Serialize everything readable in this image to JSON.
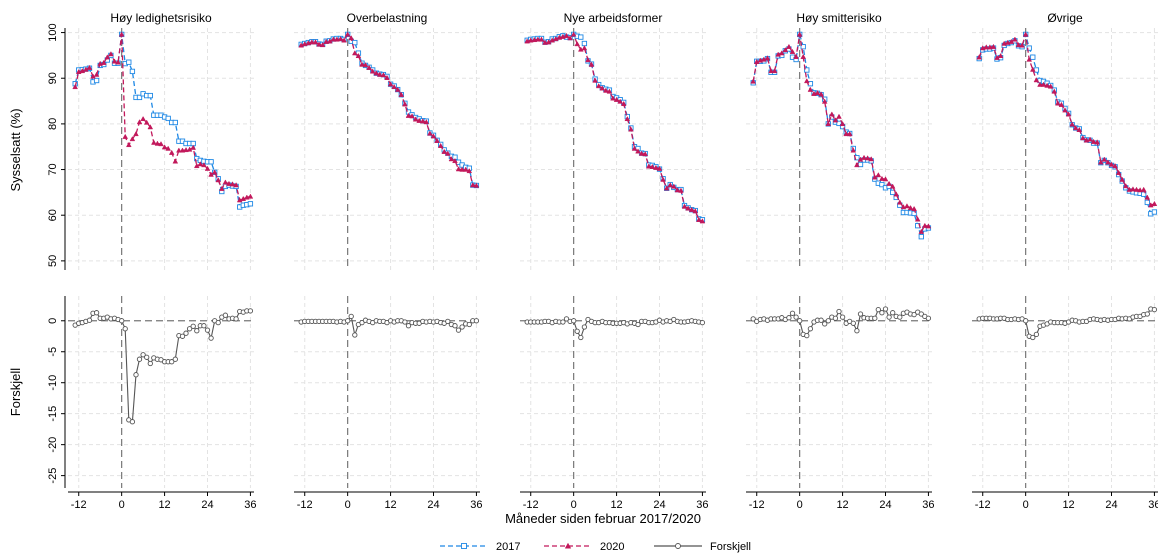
{
  "chart_data": {
    "type": "line",
    "xlabel": "Måneder siden februar 2017/2020",
    "x_ticks": [
      -12,
      0,
      12,
      24,
      36
    ],
    "x_range": [
      -15,
      37
    ],
    "top": {
      "ylabel": "Sysselsatt (%)",
      "ylim": [
        48,
        101
      ],
      "y_ticks": [
        50,
        60,
        70,
        80,
        90,
        100
      ]
    },
    "bottom": {
      "ylabel": "Forskjell",
      "ylim": [
        -27,
        4
      ],
      "y_ticks": [
        0,
        -5,
        -10,
        -15,
        -20,
        -25
      ],
      "y_tick_labels": [
        "0",
        "-5",
        "-10",
        "-15",
        "-20",
        "-25"
      ]
    },
    "legend": {
      "position": "bottom-center",
      "entries": [
        {
          "label": "2017",
          "color": "#1e88e5",
          "marker": "square",
          "dash": "dash"
        },
        {
          "label": "2020",
          "color": "#c2185b",
          "marker": "triangle",
          "dash": "dash"
        },
        {
          "label": "Forskjell",
          "color": "#555555",
          "marker": "circle",
          "dash": "solid"
        }
      ]
    },
    "months": [
      -13,
      -12,
      -11,
      -10,
      -9,
      -8,
      -7,
      -6,
      -5,
      -4,
      -3,
      -2,
      -1,
      0,
      1,
      2,
      3,
      4,
      5,
      6,
      7,
      8,
      9,
      10,
      11,
      12,
      13,
      14,
      15,
      16,
      17,
      18,
      19,
      20,
      21,
      22,
      23,
      24,
      25,
      26,
      27,
      28,
      29,
      30,
      31,
      32,
      33,
      34,
      35,
      36
    ],
    "panels": [
      {
        "title": "Høy ledighetsrisiko",
        "series_2017": [
          88.8,
          91.8,
          91.9,
          92.0,
          92.2,
          89.2,
          89.5,
          92.8,
          93.0,
          94.0,
          95.0,
          93.3,
          93.3,
          99.6,
          93.2,
          93.5,
          91.5,
          85.8,
          85.8,
          86.6,
          86.2,
          86.2,
          81.9,
          81.9,
          81.9,
          81.5,
          81.2,
          80.3,
          80.3,
          76.2,
          76.2,
          75.7,
          75.7,
          75.7,
          72.4,
          72.0,
          71.8,
          71.7,
          71.7,
          69.4,
          68.0,
          65.2,
          66.3,
          66.6,
          66.4,
          66.3,
          61.8,
          62.2,
          62.3,
          62.5
        ],
        "series_2020": [
          88.1,
          91.4,
          91.6,
          91.9,
          92.3,
          90.4,
          90.8,
          93.2,
          93.4,
          94.6,
          95.3,
          93.7,
          93.5,
          99.6,
          77.2,
          75.4,
          76.7,
          77.8,
          80.4,
          81.1,
          80.3,
          79.3,
          75.9,
          75.7,
          75.6,
          74.9,
          74.6,
          73.7,
          71.8,
          74.2,
          74.2,
          74.3,
          74.4,
          74.8,
          70.8,
          71.2,
          71.0,
          70.2,
          68.9,
          69.4,
          67.7,
          65.8,
          67.2,
          66.9,
          66.8,
          66.6,
          63.3,
          63.6,
          63.9,
          64.1
        ],
        "diff": [
          -0.7,
          -0.4,
          -0.3,
          -0.1,
          0.1,
          1.2,
          1.3,
          0.4,
          0.4,
          0.6,
          0.3,
          0.4,
          0.2,
          0.0,
          -1.3,
          -16.0,
          -16.3,
          -8.7,
          -6.2,
          -5.5,
          -5.9,
          -6.9,
          -6.0,
          -6.2,
          -6.3,
          -6.6,
          -6.6,
          -6.6,
          -6.2,
          -2.4,
          -2.5,
          -2.0,
          -1.3,
          -0.9,
          -1.6,
          -0.8,
          -0.8,
          -1.5,
          -2.8,
          0.0,
          -0.3,
          0.6,
          0.9,
          0.3,
          0.4,
          0.3,
          1.5,
          1.4,
          1.6,
          1.6
        ]
      },
      {
        "title": "Overbelastning",
        "series_2017": [
          97.4,
          97.6,
          97.8,
          98.0,
          98.0,
          97.5,
          97.4,
          98.1,
          98.2,
          98.6,
          98.7,
          98.7,
          98.5,
          99.6,
          98.1,
          97.8,
          95.5,
          93.3,
          92.8,
          92.4,
          91.8,
          91.1,
          90.9,
          90.8,
          90.4,
          88.7,
          88.3,
          87.5,
          86.4,
          84.5,
          82.6,
          82.0,
          81.4,
          81.1,
          80.7,
          80.6,
          78.0,
          77.5,
          76.4,
          75.5,
          74.3,
          73.6,
          72.9,
          72.7,
          71.6,
          71.0,
          70.5,
          70.3,
          66.6,
          66.5
        ],
        "series_2020": [
          97.2,
          97.5,
          97.7,
          97.9,
          97.9,
          97.4,
          97.3,
          98.0,
          98.1,
          98.5,
          98.5,
          98.6,
          98.3,
          99.6,
          98.8,
          95.5,
          94.9,
          93.0,
          92.9,
          92.3,
          91.5,
          91.1,
          90.8,
          90.7,
          90.1,
          88.7,
          88.1,
          87.5,
          86.4,
          84.3,
          81.8,
          81.7,
          81.0,
          80.7,
          80.6,
          80.4,
          77.9,
          77.3,
          76.3,
          75.2,
          73.9,
          73.5,
          72.3,
          71.9,
          70.1,
          70.0,
          70.0,
          69.7,
          66.6,
          66.5
        ],
        "diff": [
          -0.2,
          -0.1,
          -0.1,
          -0.1,
          -0.1,
          -0.1,
          -0.1,
          -0.1,
          -0.1,
          -0.1,
          -0.2,
          -0.1,
          -0.2,
          0.0,
          0.7,
          -2.3,
          -0.6,
          -0.3,
          0.1,
          -0.1,
          -0.3,
          0.0,
          -0.1,
          -0.1,
          -0.3,
          0.0,
          -0.2,
          0.0,
          0.0,
          -0.2,
          -0.8,
          -0.3,
          -0.4,
          -0.4,
          -0.1,
          -0.2,
          -0.1,
          -0.2,
          -0.1,
          -0.3,
          -0.4,
          -0.1,
          -0.6,
          -0.8,
          -1.5,
          -1.0,
          -0.5,
          -0.6,
          0.0,
          0.0
        ]
      },
      {
        "title": "Nye arbeidsformer",
        "series_2017": [
          98.3,
          98.5,
          98.6,
          98.7,
          98.7,
          97.9,
          98.0,
          98.6,
          98.7,
          99.1,
          99.3,
          99.0,
          98.9,
          99.6,
          99.2,
          99.0,
          97.6,
          93.8,
          93.1,
          89.8,
          88.6,
          87.9,
          87.6,
          87.4,
          86.0,
          85.7,
          85.3,
          84.7,
          81.6,
          79.1,
          75.0,
          74.6,
          73.6,
          73.5,
          71.0,
          70.9,
          70.6,
          70.1,
          68.0,
          65.9,
          66.7,
          66.1,
          65.6,
          65.6,
          62.1,
          61.6,
          61.2,
          61.0,
          59.2,
          59.0
        ],
        "series_2020": [
          98.1,
          98.3,
          98.4,
          98.5,
          98.5,
          97.8,
          97.9,
          98.3,
          98.6,
          98.9,
          99.1,
          99.3,
          98.8,
          99.6,
          97.5,
          96.3,
          96.6,
          94.0,
          93.0,
          89.5,
          88.3,
          87.8,
          87.3,
          87.1,
          85.6,
          85.3,
          84.9,
          84.4,
          81.1,
          78.8,
          74.6,
          74.0,
          73.5,
          73.4,
          70.7,
          70.6,
          70.4,
          70.2,
          67.8,
          65.9,
          66.6,
          66.3,
          65.5,
          65.4,
          61.9,
          61.5,
          61.2,
          60.9,
          59.0,
          58.7
        ],
        "diff": [
          -0.2,
          -0.2,
          -0.2,
          -0.2,
          -0.2,
          -0.1,
          -0.1,
          -0.3,
          -0.1,
          -0.2,
          -0.2,
          0.3,
          -0.1,
          0.0,
          -1.7,
          -2.7,
          -1.0,
          0.2,
          -0.1,
          -0.3,
          -0.3,
          -0.1,
          -0.3,
          -0.3,
          -0.4,
          -0.4,
          -0.4,
          -0.3,
          -0.5,
          -0.3,
          -0.4,
          -0.6,
          -0.1,
          -0.1,
          -0.3,
          -0.3,
          -0.2,
          0.1,
          -0.2,
          0.0,
          -0.1,
          0.2,
          -0.1,
          -0.2,
          -0.2,
          -0.1,
          0.0,
          -0.1,
          -0.2,
          -0.3
        ]
      },
      {
        "title": "Høy smitterisiko",
        "series_2017": [
          89.0,
          93.7,
          93.7,
          93.8,
          94.3,
          91.3,
          91.3,
          94.9,
          95.0,
          96.0,
          96.4,
          94.6,
          94.1,
          99.6,
          96.9,
          91.8,
          88.8,
          86.8,
          86.7,
          86.4,
          85.4,
          80.0,
          81.5,
          80.4,
          80.1,
          79.4,
          78.2,
          77.9,
          74.6,
          72.6,
          71.1,
          72.1,
          72.1,
          71.9,
          67.9,
          67.0,
          66.7,
          66.0,
          66.3,
          65.0,
          63.9,
          62.2,
          60.6,
          60.6,
          60.5,
          60.4,
          57.7,
          55.3,
          57.0,
          57.2
        ],
        "series_2020": [
          89.3,
          93.6,
          93.9,
          94.1,
          94.4,
          91.6,
          91.6,
          95.2,
          95.5,
          96.2,
          96.9,
          95.8,
          94.7,
          99.6,
          94.7,
          89.4,
          87.5,
          86.6,
          86.8,
          86.5,
          84.9,
          80.0,
          82.1,
          80.8,
          81.6,
          80.0,
          77.8,
          77.8,
          74.2,
          71.0,
          72.2,
          72.6,
          72.5,
          72.3,
          68.3,
          68.8,
          68.0,
          67.9,
          66.9,
          66.3,
          64.6,
          62.8,
          61.8,
          62.0,
          61.6,
          61.4,
          59.1,
          56.4,
          57.7,
          57.6
        ],
        "diff": [
          0.3,
          -0.1,
          0.2,
          0.3,
          0.1,
          0.3,
          0.3,
          0.3,
          0.5,
          0.2,
          0.5,
          1.2,
          0.6,
          0.0,
          -2.2,
          -2.4,
          -1.3,
          -0.2,
          0.1,
          0.1,
          -0.5,
          0.0,
          0.6,
          0.4,
          1.5,
          0.6,
          -0.4,
          -0.1,
          -0.4,
          -1.6,
          1.1,
          0.5,
          0.4,
          0.4,
          0.4,
          1.8,
          1.3,
          1.9,
          0.6,
          1.3,
          0.7,
          0.6,
          1.2,
          1.4,
          1.1,
          1.0,
          1.4,
          1.1,
          0.7,
          0.4
        ]
      },
      {
        "title": "Øvrige",
        "series_2017": [
          94.3,
          96.2,
          96.4,
          96.4,
          96.6,
          94.2,
          94.5,
          97.2,
          97.6,
          97.8,
          98.2,
          97.1,
          96.9,
          99.6,
          96.6,
          94.6,
          91.8,
          89.5,
          89.3,
          88.9,
          88.4,
          87.4,
          84.8,
          84.5,
          83.4,
          82.3,
          79.8,
          79.1,
          78.9,
          77.0,
          76.5,
          76.4,
          75.8,
          75.8,
          71.5,
          72.0,
          71.5,
          70.9,
          70.6,
          68.9,
          67.5,
          66.0,
          65.3,
          65.1,
          64.9,
          64.8,
          64.6,
          62.8,
          60.3,
          60.7
        ],
        "series_2020": [
          94.6,
          96.6,
          96.8,
          96.8,
          96.9,
          94.5,
          94.9,
          97.6,
          97.8,
          98.0,
          98.5,
          97.3,
          97.2,
          99.6,
          94.1,
          91.9,
          89.6,
          88.6,
          88.6,
          88.4,
          88.2,
          87.1,
          84.5,
          84.2,
          83.0,
          82.1,
          79.9,
          79.1,
          78.7,
          76.9,
          76.4,
          76.6,
          76.1,
          76.0,
          71.6,
          72.2,
          71.6,
          71.1,
          70.8,
          69.3,
          67.8,
          66.4,
          65.6,
          65.7,
          65.6,
          65.5,
          65.6,
          63.9,
          62.2,
          62.5
        ],
        "diff": [
          0.3,
          0.4,
          0.4,
          0.4,
          0.3,
          0.3,
          0.4,
          0.4,
          0.2,
          0.2,
          0.3,
          0.2,
          0.3,
          0.0,
          -2.5,
          -2.7,
          -2.2,
          -0.9,
          -0.7,
          -0.5,
          -0.2,
          -0.3,
          -0.3,
          -0.3,
          -0.4,
          -0.2,
          0.1,
          0.0,
          -0.2,
          -0.1,
          -0.1,
          0.2,
          0.3,
          0.2,
          0.1,
          0.2,
          0.1,
          0.2,
          0.2,
          0.4,
          0.3,
          0.4,
          0.3,
          0.6,
          0.7,
          0.7,
          1.0,
          1.1,
          1.9,
          1.8
        ]
      }
    ]
  }
}
